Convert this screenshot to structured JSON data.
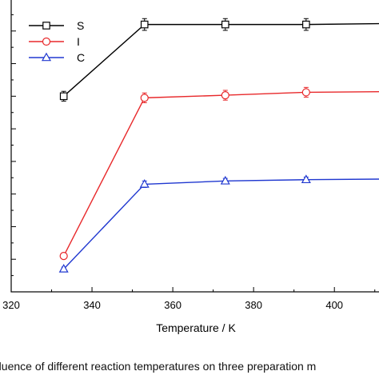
{
  "chart_data": {
    "type": "line",
    "title": "",
    "xlabel": "Temperature / K",
    "ylabel": "",
    "xlim": [
      320,
      415
    ],
    "ylim": [
      0,
      9
    ],
    "x_ticks": [
      "320",
      "340",
      "360",
      "380",
      "400"
    ],
    "x_tick_values": [
      320,
      340,
      360,
      380,
      400
    ],
    "y_ticks": [
      0,
      1,
      2,
      3,
      4,
      5,
      6,
      7,
      8,
      9
    ],
    "grid": false,
    "legend": "top-left",
    "x": [
      333,
      353,
      373,
      393,
      413
    ],
    "series": [
      {
        "name": "S",
        "color": "#000000",
        "marker": "square",
        "values": [
          6.0,
          8.2,
          8.2,
          8.2,
          8.23
        ],
        "errors": [
          0.15,
          0.18,
          0.18,
          0.18,
          0.15
        ]
      },
      {
        "name": "I",
        "color": "#e8292b",
        "marker": "circle",
        "values": [
          1.1,
          5.95,
          6.03,
          6.12,
          6.14
        ],
        "errors": [
          0.08,
          0.15,
          0.15,
          0.15,
          0.12
        ]
      },
      {
        "name": "C",
        "color": "#2038d0",
        "marker": "triangle",
        "values": [
          0.7,
          3.3,
          3.4,
          3.44,
          3.46
        ],
        "errors": [
          0.06,
          0.1,
          0.08,
          0.08,
          0.08
        ]
      }
    ]
  },
  "caption": "nfluence of different reaction temperatures on three preparation m"
}
